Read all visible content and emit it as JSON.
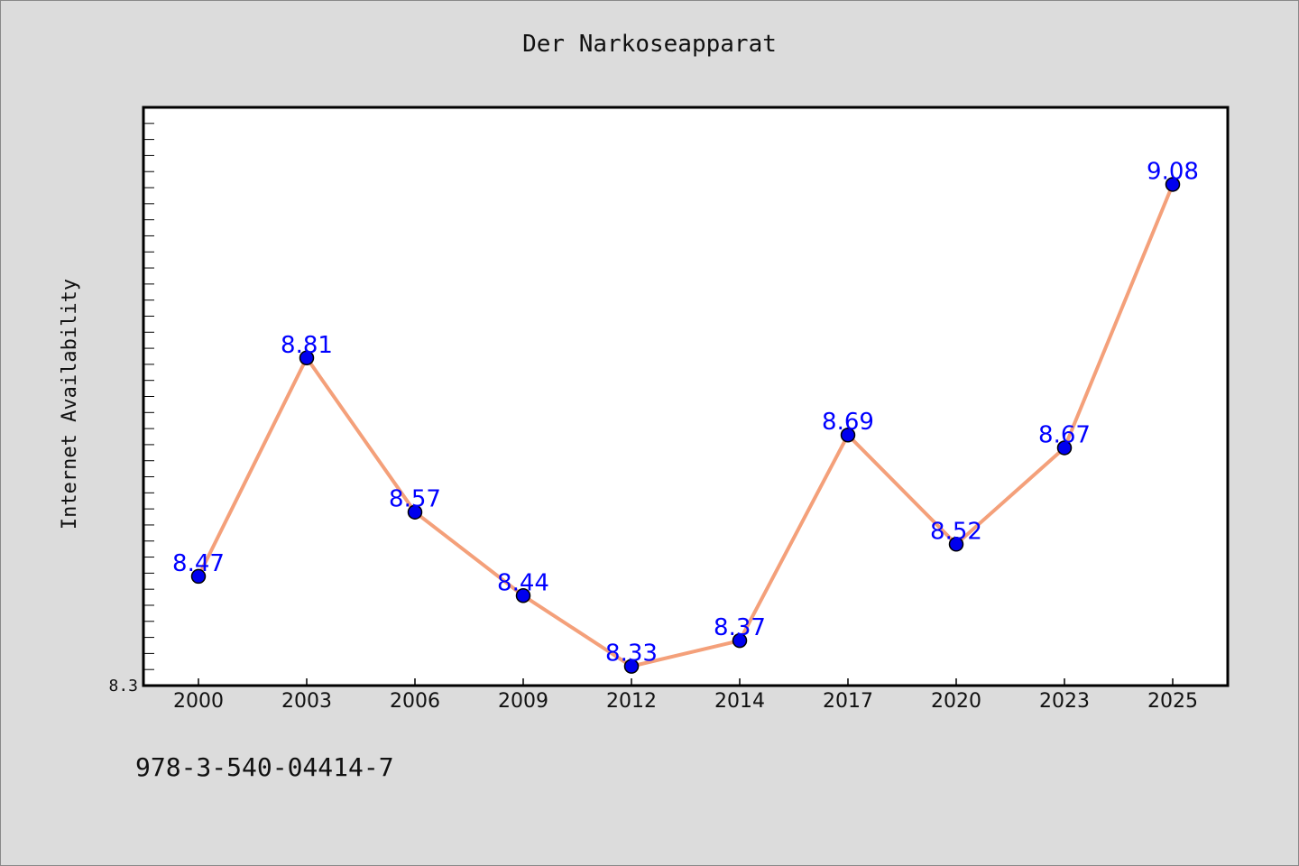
{
  "chart_data": {
    "type": "line",
    "title": "Der Narkoseapparat",
    "xlabel": "",
    "ylabel": "Internet Availability",
    "categories": [
      "2000",
      "2003",
      "2006",
      "2009",
      "2012",
      "2014",
      "2017",
      "2020",
      "2023",
      "2025"
    ],
    "series": [
      {
        "values": [
          8.47,
          8.81,
          8.57,
          8.44,
          8.33,
          8.37,
          8.69,
          8.52,
          8.67,
          9.08
        ],
        "data_labels": [
          "8.47",
          "8.81",
          "8.57",
          "8.44",
          "8.33",
          "8.37",
          "8.69",
          "8.52",
          "8.67",
          "9.08"
        ]
      }
    ],
    "ylim": [
      8.3,
      9.2
    ],
    "ytick_labels": [
      "8.3"
    ],
    "grid": false,
    "colors": {
      "line": "#f4a07a",
      "marker": "#0000ee",
      "label": "#0000ff"
    }
  },
  "footer": {
    "isbn": "978-3-540-04414-7"
  }
}
